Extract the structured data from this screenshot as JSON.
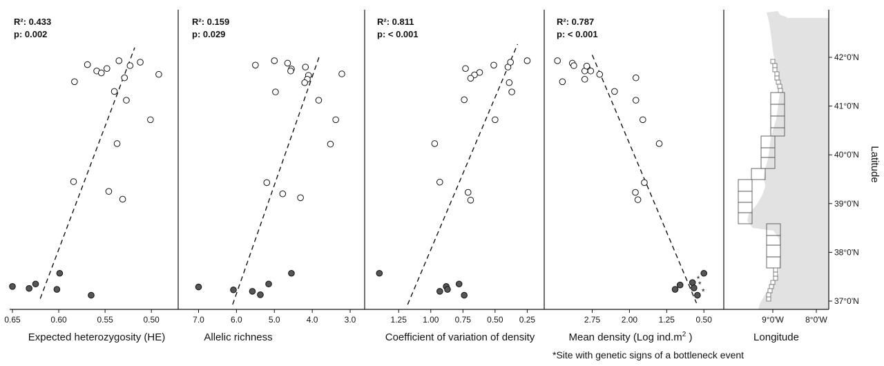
{
  "chart_data": [
    {
      "type": "scatter",
      "xlabel": "Expected heterozygosity (HE)",
      "r2_text": "R²:  0.433",
      "p_text": "p:  0.002",
      "xlim": [
        0.65,
        0.48
      ],
      "xticks": [
        "0.65",
        "0.60",
        "0.55",
        "0.50"
      ],
      "xtick_values": [
        0.65,
        0.6,
        0.55,
        0.5
      ],
      "ylim": [
        36.9,
        42.9
      ],
      "trend": {
        "y1": 37.05,
        "x1": 0.62,
        "y2": 42.2,
        "x2": 0.518
      },
      "points": [
        {
          "x": 0.569,
          "y": 41.85
        },
        {
          "x": 0.559,
          "y": 41.72
        },
        {
          "x": 0.554,
          "y": 41.68
        },
        {
          "x": 0.548,
          "y": 41.77
        },
        {
          "x": 0.535,
          "y": 41.93
        },
        {
          "x": 0.523,
          "y": 41.83
        },
        {
          "x": 0.512,
          "y": 41.9
        },
        {
          "x": 0.492,
          "y": 41.65
        },
        {
          "x": 0.583,
          "y": 41.5
        },
        {
          "x": 0.529,
          "y": 41.58
        },
        {
          "x": 0.54,
          "y": 41.3
        },
        {
          "x": 0.527,
          "y": 41.12
        },
        {
          "x": 0.501,
          "y": 40.72
        },
        {
          "x": 0.537,
          "y": 40.23
        },
        {
          "x": 0.584,
          "y": 39.45
        },
        {
          "x": 0.546,
          "y": 39.25
        },
        {
          "x": 0.531,
          "y": 39.09
        }
      ],
      "bottleneck_points": [
        {
          "x": 0.65,
          "y": 37.3
        },
        {
          "x": 0.632,
          "y": 37.26
        },
        {
          "x": 0.625,
          "y": 37.35
        },
        {
          "x": 0.602,
          "y": 37.24
        },
        {
          "x": 0.599,
          "y": 37.57
        },
        {
          "x": 0.565,
          "y": 37.12
        }
      ]
    },
    {
      "type": "scatter",
      "xlabel": "Allelic richness",
      "r2_text": "R²: 0.159",
      "p_text": "p:   0.029",
      "xlim": [
        7.1,
        2.8
      ],
      "xticks": [
        "7.0",
        "6.0",
        "5.0",
        "4.0",
        "3.0"
      ],
      "xtick_values": [
        7.0,
        6.0,
        5.0,
        4.0,
        3.0
      ],
      "ylim": [
        36.9,
        42.9
      ],
      "trend": {
        "y1": 36.93,
        "x1": 6.1,
        "y2": 42.05,
        "x2": 3.8
      },
      "points": [
        {
          "x": 5.5,
          "y": 41.84
        },
        {
          "x": 5.0,
          "y": 41.93
        },
        {
          "x": 4.65,
          "y": 41.88
        },
        {
          "x": 4.55,
          "y": 41.76
        },
        {
          "x": 4.57,
          "y": 41.72
        },
        {
          "x": 4.18,
          "y": 41.8
        },
        {
          "x": 4.1,
          "y": 41.63
        },
        {
          "x": 4.13,
          "y": 41.55
        },
        {
          "x": 4.2,
          "y": 41.48
        },
        {
          "x": 3.22,
          "y": 41.66
        },
        {
          "x": 4.97,
          "y": 41.29
        },
        {
          "x": 3.83,
          "y": 41.12
        },
        {
          "x": 3.38,
          "y": 40.72
        },
        {
          "x": 3.52,
          "y": 40.22
        },
        {
          "x": 5.2,
          "y": 39.43
        },
        {
          "x": 4.78,
          "y": 39.2
        },
        {
          "x": 4.31,
          "y": 39.12
        }
      ],
      "bottleneck_points": [
        {
          "x": 7.0,
          "y": 37.29
        },
        {
          "x": 6.08,
          "y": 37.23
        },
        {
          "x": 5.58,
          "y": 37.2
        },
        {
          "x": 5.37,
          "y": 37.13
        },
        {
          "x": 5.15,
          "y": 37.35
        },
        {
          "x": 4.55,
          "y": 37.57
        }
      ]
    },
    {
      "type": "scatter",
      "xlabel": "Coefficient of variation of density",
      "r2_text": "R²: 0.811",
      "p_text": "p: < 0.001",
      "xlim": [
        1.45,
        0.15
      ],
      "xticks": [
        "1.25",
        "1.00",
        "0.75",
        "0.50",
        "0.25"
      ],
      "xtick_values": [
        1.25,
        1.0,
        0.75,
        0.5,
        0.25
      ],
      "ylim": [
        36.9,
        42.9
      ],
      "trend": {
        "y1": 36.93,
        "x1": 1.18,
        "y2": 42.27,
        "x2": 0.325
      },
      "points": [
        {
          "x": 0.73,
          "y": 41.77
        },
        {
          "x": 0.62,
          "y": 41.69
        },
        {
          "x": 0.66,
          "y": 41.64
        },
        {
          "x": 0.69,
          "y": 41.57
        },
        {
          "x": 0.51,
          "y": 41.84
        },
        {
          "x": 0.4,
          "y": 41.8
        },
        {
          "x": 0.38,
          "y": 41.9
        },
        {
          "x": 0.25,
          "y": 41.93
        },
        {
          "x": 0.39,
          "y": 41.48
        },
        {
          "x": 0.37,
          "y": 41.29
        },
        {
          "x": 0.74,
          "y": 41.13
        },
        {
          "x": 0.5,
          "y": 40.72
        },
        {
          "x": 0.97,
          "y": 40.23
        },
        {
          "x": 0.93,
          "y": 39.44
        },
        {
          "x": 0.71,
          "y": 39.23
        },
        {
          "x": 0.69,
          "y": 39.07
        }
      ],
      "bottleneck_points": [
        {
          "x": 1.4,
          "y": 37.57
        },
        {
          "x": 0.88,
          "y": 37.3
        },
        {
          "x": 0.93,
          "y": 37.2
        },
        {
          "x": 0.87,
          "y": 37.24
        },
        {
          "x": 0.78,
          "y": 37.35
        },
        {
          "x": 0.74,
          "y": 37.12
        }
      ]
    },
    {
      "type": "scatter",
      "xlabel": "Mean density (Log ind.m",
      "xlabel_sup": "2",
      "xlabel_end": " )",
      "r2_text": "R²:  0.787",
      "p_text": "p: < 0.001",
      "xlim": [
        3.55,
        0.35
      ],
      "xticks": [
        "2.75",
        "2.00",
        "1.25",
        "0.50"
      ],
      "xtick_values": [
        2.75,
        2.0,
        1.25,
        0.5
      ],
      "ylim": [
        36.9,
        42.9
      ],
      "trend": {
        "y1": 42.05,
        "x1": 2.75,
        "y2": 36.96,
        "x2": 0.65
      },
      "points": [
        {
          "x": 3.45,
          "y": 41.93
        },
        {
          "x": 3.15,
          "y": 41.88
        },
        {
          "x": 3.12,
          "y": 41.83
        },
        {
          "x": 2.85,
          "y": 41.78
        },
        {
          "x": 2.9,
          "y": 41.72
        },
        {
          "x": 2.78,
          "y": 41.72
        },
        {
          "x": 2.86,
          "y": 41.82
        },
        {
          "x": 2.6,
          "y": 41.65
        },
        {
          "x": 3.35,
          "y": 41.5
        },
        {
          "x": 2.9,
          "y": 41.55
        },
        {
          "x": 2.3,
          "y": 41.3
        },
        {
          "x": 1.87,
          "y": 41.58
        },
        {
          "x": 1.87,
          "y": 41.12
        },
        {
          "x": 1.73,
          "y": 40.72
        },
        {
          "x": 1.4,
          "y": 40.23
        },
        {
          "x": 1.7,
          "y": 39.43
        },
        {
          "x": 1.88,
          "y": 39.23
        },
        {
          "x": 1.83,
          "y": 39.08
        }
      ],
      "bottleneck_points": [
        {
          "x": 1.08,
          "y": 37.24
        },
        {
          "x": 0.98,
          "y": 37.33
        },
        {
          "x": 0.5,
          "y": 37.57
        },
        {
          "x": 0.73,
          "y": 37.38
        },
        {
          "x": 0.7,
          "y": 37.27
        },
        {
          "x": 0.63,
          "y": 37.12
        }
      ],
      "asterisk_text": "*"
    }
  ],
  "map": {
    "xlabel": "Longitude",
    "ylabel": "Latitude",
    "xticks": [
      "9°0'W",
      "8°0'W"
    ],
    "yticks": [
      "42°0'N",
      "41°0'N",
      "40°0'N",
      "39°0'N",
      "38°0'N",
      "37°0'N"
    ],
    "land_color": "#e2e2e2"
  },
  "footnote": "*Site with genetic signs of a bottleneck event",
  "colors": {
    "open_marker": "#ffffff",
    "filled_marker": "#555555",
    "stroke": "#111111"
  }
}
